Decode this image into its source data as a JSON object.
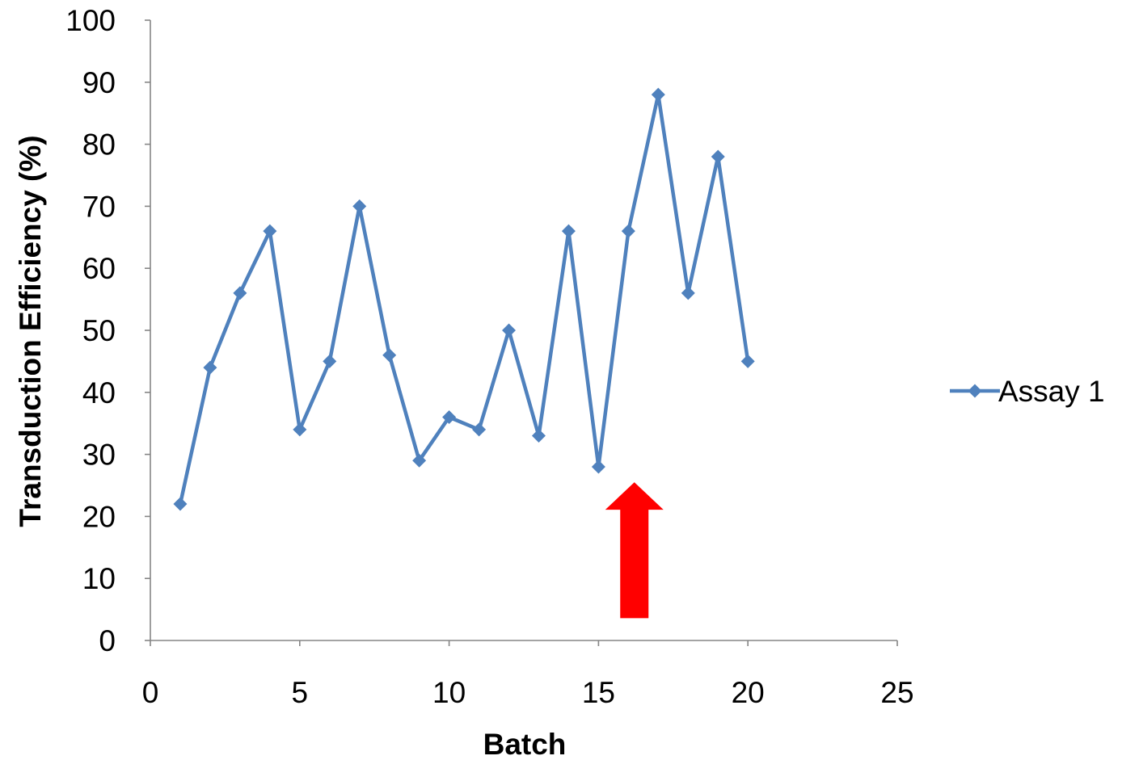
{
  "chart_data": {
    "type": "line",
    "title": "",
    "xlabel": "Batch",
    "ylabel": "Transduction Efficiency (%)",
    "xlim": [
      0,
      25
    ],
    "ylim": [
      0,
      100
    ],
    "x_ticks": [
      0,
      5,
      10,
      15,
      20,
      25
    ],
    "y_ticks": [
      0,
      10,
      20,
      30,
      40,
      50,
      60,
      70,
      80,
      90,
      100
    ],
    "grid": false,
    "legend_position": "right",
    "series": [
      {
        "name": "Assay 1",
        "color": "#4f81bd",
        "marker": "diamond",
        "x": [
          1,
          2,
          3,
          4,
          5,
          6,
          7,
          8,
          9,
          10,
          11,
          12,
          13,
          14,
          15,
          16,
          17,
          18,
          19,
          20
        ],
        "y": [
          22,
          44,
          56,
          66,
          34,
          45,
          70,
          46,
          29,
          36,
          34,
          50,
          33,
          66,
          28,
          66,
          88,
          56,
          78,
          45
        ]
      }
    ],
    "annotations": [
      {
        "type": "arrow",
        "direction": "up",
        "color": "#ff0000",
        "x": 16.2,
        "y_tip": 25.5,
        "y_base": 3.6
      }
    ]
  }
}
